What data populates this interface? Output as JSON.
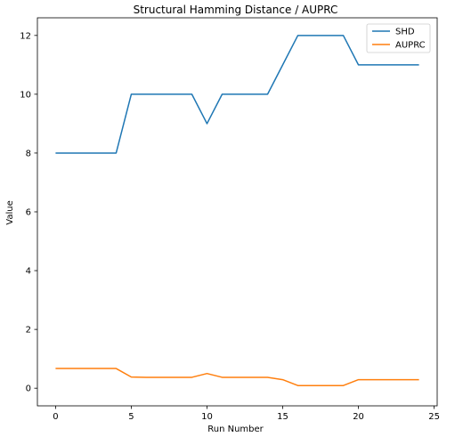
{
  "chart_data": {
    "type": "line",
    "title": "Structural Hamming Distance / AUPRC",
    "xlabel": "Run Number",
    "ylabel": "Value",
    "xlim": [
      -1.2,
      25.2
    ],
    "ylim": [
      -0.6,
      12.6
    ],
    "xticks": [
      0,
      5,
      10,
      15,
      20,
      25
    ],
    "yticks": [
      0,
      2,
      4,
      6,
      8,
      10,
      12
    ],
    "grid": false,
    "legend_position": "top-right",
    "x": [
      0,
      1,
      2,
      3,
      4,
      5,
      6,
      7,
      8,
      9,
      10,
      11,
      12,
      13,
      14,
      15,
      16,
      17,
      18,
      19,
      20,
      21,
      22,
      23,
      24
    ],
    "series": [
      {
        "name": "SHD",
        "color": "#1f77b4",
        "values": [
          8,
          8,
          8,
          8,
          8,
          10,
          10,
          10,
          10,
          10,
          9,
          10,
          10,
          10,
          10,
          11,
          12,
          12,
          12,
          12,
          11,
          11,
          11,
          11,
          11
        ]
      },
      {
        "name": "AUPRC",
        "color": "#ff7f0e",
        "values": [
          0.67,
          0.67,
          0.67,
          0.67,
          0.67,
          0.38,
          0.37,
          0.37,
          0.37,
          0.37,
          0.5,
          0.37,
          0.37,
          0.37,
          0.37,
          0.29,
          0.09,
          0.09,
          0.09,
          0.09,
          0.29,
          0.29,
          0.29,
          0.29,
          0.29
        ]
      }
    ]
  }
}
